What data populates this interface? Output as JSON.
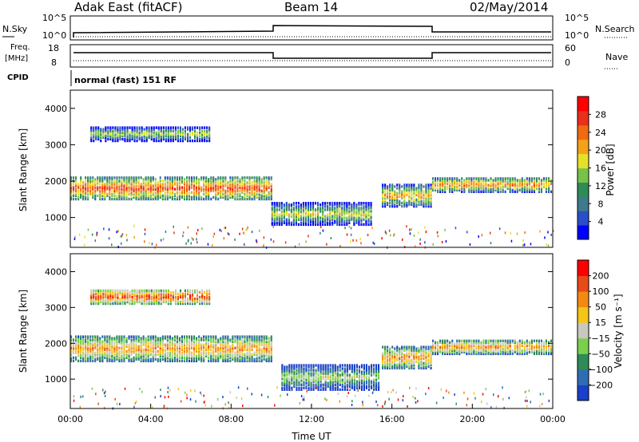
{
  "header": {
    "station": "Adak East (fitACF)",
    "beam": "Beam 14",
    "date": "02/May/2014"
  },
  "aux_panels": {
    "nsky_label": "N.Sky",
    "nsky_ticks": [
      "10^5",
      "10^0"
    ],
    "nsearch_label": "N.Search",
    "nsearch_ticks": [
      "10^5",
      "10^0"
    ],
    "freq_label": "Freq.",
    "freq_unit": "[MHz]",
    "freq_ticks": [
      "18",
      "8"
    ],
    "nave_label": "Nave",
    "nave_ticks": [
      "60",
      "0"
    ],
    "cpid_label": "CPID",
    "cpid_text": "normal (fast) 151 RF"
  },
  "chart_data": [
    {
      "type": "heatmap",
      "name": "power",
      "ylabel": "Slant Range [km]",
      "yticks": [
        "4000",
        "3000",
        "2000",
        "1000"
      ],
      "ylim": [
        180,
        4500
      ],
      "xlim": [
        0,
        24
      ],
      "colorbar_label": "Power [dB]",
      "colorbar_ticks": [
        "28",
        "24",
        "20",
        "16",
        "12",
        "8",
        "4"
      ],
      "colorbar_colors": [
        "#0000ff",
        "#2b4fc9",
        "#3f7a8c",
        "#2e8b57",
        "#79c24a",
        "#e6e02a",
        "#f5a11a",
        "#f06a12",
        "#e8301a",
        "#ff0000"
      ],
      "bands": [
        {
          "t0": 0,
          "t1": 10,
          "r0": 1500,
          "r1": 2100,
          "level": 0.55
        },
        {
          "t0": 10,
          "t1": 15,
          "r0": 800,
          "r1": 1400,
          "level": 0.3
        },
        {
          "t0": 15.5,
          "t1": 18,
          "r0": 1300,
          "r1": 1900,
          "level": 0.4
        },
        {
          "t0": 18,
          "t1": 24,
          "r0": 1700,
          "r1": 2100,
          "level": 0.45
        },
        {
          "t0": 1,
          "t1": 7,
          "r0": 3100,
          "r1": 3500,
          "level": 0.25
        }
      ]
    },
    {
      "type": "heatmap",
      "name": "velocity",
      "ylabel": "Slant Range [km]",
      "xlabel": "Time UT",
      "yticks": [
        "4000",
        "3000",
        "2000",
        "1000"
      ],
      "xticks": [
        "00:00",
        "04:00",
        "08:00",
        "12:00",
        "16:00",
        "20:00",
        "00:00"
      ],
      "ylim": [
        180,
        4500
      ],
      "xlim": [
        0,
        24
      ],
      "colorbar_label": "Velocity [m s⁻¹]",
      "colorbar_ticks": [
        "200",
        "100",
        "50",
        "15",
        "−15",
        "−50",
        "−100",
        "−200"
      ],
      "colorbar_colors": [
        "#1a3fc9",
        "#2f6db3",
        "#2e8b57",
        "#79d04a",
        "#c8c8c0",
        "#f5c518",
        "#f28a12",
        "#e84a1a",
        "#ff0000"
      ],
      "bands": [
        {
          "t0": 0,
          "t1": 10,
          "r0": 1500,
          "r1": 2200,
          "level": 0.45
        },
        {
          "t0": 10.5,
          "t1": 15.3,
          "r0": 700,
          "r1": 1400,
          "level": 0.2
        },
        {
          "t0": 15.5,
          "t1": 18,
          "r0": 1300,
          "r1": 1900,
          "level": 0.45
        },
        {
          "t0": 18,
          "t1": 24,
          "r0": 1700,
          "r1": 2100,
          "level": 0.45
        },
        {
          "t0": 1,
          "t1": 7,
          "r0": 3100,
          "r1": 3500,
          "level": 0.6
        }
      ]
    }
  ]
}
